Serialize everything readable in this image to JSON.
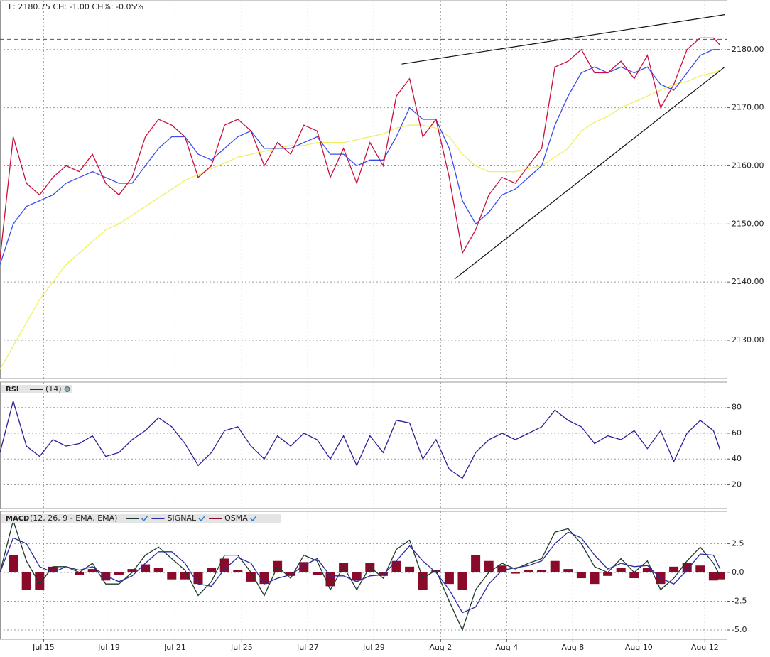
{
  "chart_data": [
    {
      "type": "line",
      "title": "L: 2180.75 CH: -1.00 CH%: -0.05%",
      "x": [
        0,
        2,
        4,
        6,
        8,
        10,
        12,
        14,
        16,
        18,
        20,
        22,
        24,
        26,
        28,
        30,
        32,
        34,
        36,
        38,
        40,
        42,
        44,
        46,
        48,
        50,
        52,
        54,
        56,
        58,
        60,
        62,
        64,
        66,
        68,
        70,
        72,
        74,
        76,
        78,
        80,
        82,
        84,
        86,
        88,
        90,
        92,
        94,
        96,
        98,
        100,
        102,
        104,
        106,
        108,
        109
      ],
      "xlim": [
        0,
        110
      ],
      "xticks": [
        {
          "value": 6.6,
          "label": "Jul 15"
        },
        {
          "value": 16.5,
          "label": "Jul 19"
        },
        {
          "value": 26.5,
          "label": "Jul 21"
        },
        {
          "value": 36.6,
          "label": "Jul 25"
        },
        {
          "value": 46.6,
          "label": "Jul 27"
        },
        {
          "value": 56.6,
          "label": "Jul 29"
        },
        {
          "value": 66.7,
          "label": "Aug 2"
        },
        {
          "value": 76.7,
          "label": "Aug 4"
        },
        {
          "value": 86.7,
          "label": "Aug 8"
        },
        {
          "value": 96.7,
          "label": "Aug 10"
        },
        {
          "value": 106.7,
          "label": "Aug 12"
        }
      ],
      "series": [
        {
          "color": "#f2ef60",
          "values": [
            2125,
            2129,
            2133,
            2137,
            2140,
            2143,
            2145,
            2147,
            2149,
            2150,
            2151.5,
            2153,
            2154.5,
            2156,
            2157.5,
            2158.5,
            2159.5,
            2160.5,
            2161.5,
            2162,
            2162.5,
            2163,
            2163.5,
            2163.5,
            2164,
            2164,
            2164,
            2164.5,
            2165,
            2165.5,
            2166.5,
            2167,
            2167,
            2166.5,
            2165,
            2162,
            2160,
            2159,
            2159,
            2159,
            2159.5,
            2160,
            2161.5,
            2163,
            2166,
            2167.5,
            2168.5,
            2170,
            2171,
            2172,
            2173,
            2174,
            2174.5,
            2175.5,
            2176,
            2176.5
          ]
        },
        {
          "color": "#3a4cf0",
          "values": [
            2143,
            2150,
            2153,
            2154,
            2155,
            2157,
            2158,
            2159,
            2158,
            2157,
            2157,
            2160,
            2163,
            2165,
            2165,
            2162,
            2161,
            2163,
            2165,
            2166,
            2163,
            2163,
            2163,
            2164,
            2165,
            2162,
            2162,
            2160,
            2161,
            2161,
            2165,
            2170,
            2168,
            2168,
            2163,
            2154,
            2150,
            2152,
            2155,
            2156,
            2158,
            2160,
            2167,
            2172,
            2176,
            2177,
            2176,
            2177,
            2176,
            2177,
            2174,
            2173,
            2176,
            2179,
            2180,
            2180
          ]
        },
        {
          "color": "#c8103a",
          "values": [
            2144,
            2165,
            2157,
            2155,
            2158,
            2160,
            2159,
            2162,
            2157,
            2155,
            2158,
            2165,
            2168,
            2167,
            2165,
            2158,
            2160,
            2167,
            2168,
            2166,
            2160,
            2164,
            2162,
            2167,
            2166,
            2158,
            2163,
            2157,
            2164,
            2160,
            2172,
            2175,
            2165,
            2168,
            2158,
            2145,
            2149,
            2155,
            2158,
            2157,
            2160,
            2163,
            2177,
            2178,
            2180,
            2176,
            2176,
            2178,
            2175,
            2179,
            2170,
            2174,
            2180,
            2182,
            2182,
            2180.75
          ]
        }
      ],
      "reference_line": 2181.75,
      "trendlines": [
        {
          "x": [
            60.8,
            109.7
          ],
          "y": [
            2177.5,
            2186
          ]
        },
        {
          "x": [
            68.8,
            109.7
          ],
          "y": [
            2140.5,
            2177
          ]
        }
      ],
      "ylim": [
        2123.4,
        2188.4
      ],
      "yticks": [
        {
          "value": 2130,
          "label": "2130.00"
        },
        {
          "value": 2140,
          "label": "2140.00"
        },
        {
          "value": 2150,
          "label": "2150.00"
        },
        {
          "value": 2160,
          "label": "2160.00"
        },
        {
          "value": 2170,
          "label": "2170.00"
        },
        {
          "value": 2180,
          "label": "2180.00"
        }
      ],
      "grid": true
    },
    {
      "type": "line",
      "title": "RSI",
      "series": [
        {
          "name": "(14)",
          "color": "#2e1e96",
          "values": [
            45,
            85,
            50,
            42,
            55,
            50,
            52,
            58,
            42,
            45,
            55,
            62,
            72,
            65,
            52,
            35,
            45,
            62,
            65,
            50,
            40,
            58,
            50,
            60,
            55,
            40,
            58,
            35,
            58,
            45,
            70,
            68,
            40,
            55,
            32,
            25,
            45,
            55,
            60,
            55,
            60,
            65,
            78,
            70,
            65,
            52,
            58,
            55,
            62,
            48,
            62,
            38,
            60,
            70,
            62,
            47
          ]
        }
      ],
      "ylim": [
        1.5,
        99.7
      ],
      "yticks": [
        20,
        40,
        60,
        80
      ],
      "grid": true
    },
    {
      "type": "line",
      "title": "MACD",
      "subtitle": "(12, 26, 9 - EMA, EMA)",
      "series": [
        {
          "color": "#8b0a2a",
          "style": "bar",
          "name": "OSMA",
          "values": [
            0,
            1.5,
            -1.5,
            -1.5,
            0.5,
            0,
            -0.2,
            0.3,
            -0.7,
            -0.2,
            0.3,
            0.7,
            0.4,
            -0.6,
            -0.6,
            -1,
            0.4,
            1.2,
            0.2,
            -0.8,
            -1,
            1,
            -0.3,
            0.9,
            -0.2,
            -1.2,
            0.8,
            -0.7,
            0.8,
            -0.3,
            1,
            0.5,
            -1.5,
            0.2,
            -1,
            -1.5,
            1.5,
            1,
            0.6,
            -0.1,
            0.2,
            0.2,
            1,
            0.3,
            -0.5,
            -1,
            -0.3,
            0.4,
            -0.5,
            0.4,
            -1,
            0.5,
            0.8,
            0.6,
            -0.7,
            -0.6
          ]
        },
        {
          "color": "#1c3a2c",
          "values": [
            0,
            4.5,
            1,
            -1,
            0.5,
            0.5,
            0,
            0.8,
            -1,
            -1,
            0,
            1.5,
            2.2,
            1.2,
            0.2,
            -2,
            -0.8,
            1.5,
            1.5,
            0,
            -2,
            0.5,
            -0.5,
            1.5,
            1,
            -1.5,
            0.5,
            -1.5,
            0.5,
            -0.5,
            2,
            2.8,
            -0.5,
            0.2,
            -2.5,
            -5,
            -1.5,
            0,
            0.8,
            0.3,
            0.8,
            1.2,
            3.5,
            3.8,
            2.5,
            0.5,
            0,
            1.2,
            0,
            1,
            -1.5,
            -0.5,
            1,
            2.2,
            0.8,
            -0.3
          ]
        },
        {
          "name": "SIGNAL",
          "color": "#2a2aa0",
          "values": [
            0,
            3,
            2.5,
            0.5,
            0,
            0.5,
            0.2,
            0.5,
            -0.3,
            -0.8,
            -0.3,
            0.8,
            1.8,
            1.8,
            0.8,
            -1,
            -1.2,
            0.3,
            1.3,
            0.8,
            -1,
            -0.5,
            -0.2,
            0.6,
            1.2,
            -0.3,
            -0.3,
            -0.8,
            -0.3,
            -0.2,
            1,
            2.3,
            1,
            0,
            -1.5,
            -3.5,
            -3,
            -1,
            0.2,
            0.4,
            0.6,
            1,
            2.5,
            3.5,
            3,
            1.5,
            0.3,
            0.8,
            0.5,
            0.6,
            -0.5,
            -1,
            0.2,
            1.6,
            1.5,
            0.3
          ]
        }
      ],
      "ylim": [
        -5.8,
        5.3
      ],
      "yticks": [
        {
          "value": -5,
          "label": "-5.0"
        },
        -2.5,
        {
          "value": 0,
          "label": "0.0"
        },
        2.5
      ],
      "grid": true
    }
  ]
}
